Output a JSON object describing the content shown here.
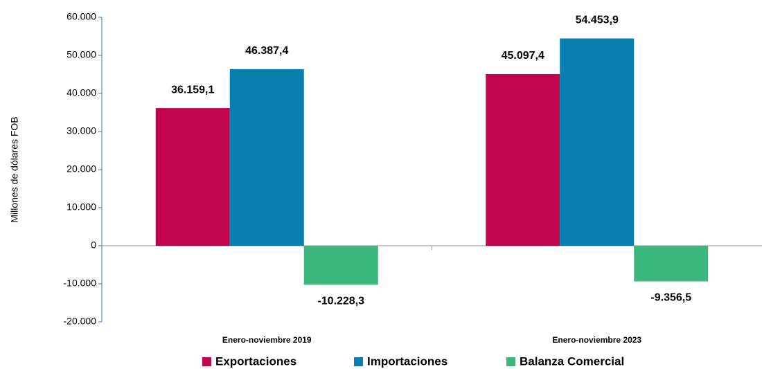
{
  "chart_data": {
    "type": "bar",
    "y_label": "Millones de dólares FOB",
    "categories": [
      "Enero-noviembre 2019",
      "Enero-noviembre 2023"
    ],
    "series": [
      {
        "name": "Exportaciones",
        "color": "#c0044e",
        "values": [
          36159.1,
          45097.4
        ],
        "value_labels": [
          "36.159,1",
          "45.097,4"
        ]
      },
      {
        "name": "Importaciones",
        "color": "#0a7fae",
        "values": [
          46387.4,
          54453.9
        ],
        "value_labels": [
          "46.387,4",
          "54.453,9"
        ]
      },
      {
        "name": "Balanza Comercial",
        "color": "#3bb77e",
        "values": [
          -10228.3,
          -9356.5
        ],
        "value_labels": [
          "-10.228,3",
          "-9.356,5"
        ]
      }
    ],
    "ylim": [
      -20000,
      60000
    ],
    "yticks": [
      {
        "value": -20000,
        "label": "-20.000"
      },
      {
        "value": -10000,
        "label": "-10.000"
      },
      0,
      {
        "value": 10000,
        "label": "10.000"
      },
      {
        "value": 20000,
        "label": "20.000"
      },
      {
        "value": 30000,
        "label": "30.000"
      },
      {
        "value": 40000,
        "label": "40.000"
      },
      {
        "value": 50000,
        "label": "50.000"
      },
      {
        "value": 60000,
        "label": "60.000"
      }
    ],
    "legend": "bottom"
  }
}
